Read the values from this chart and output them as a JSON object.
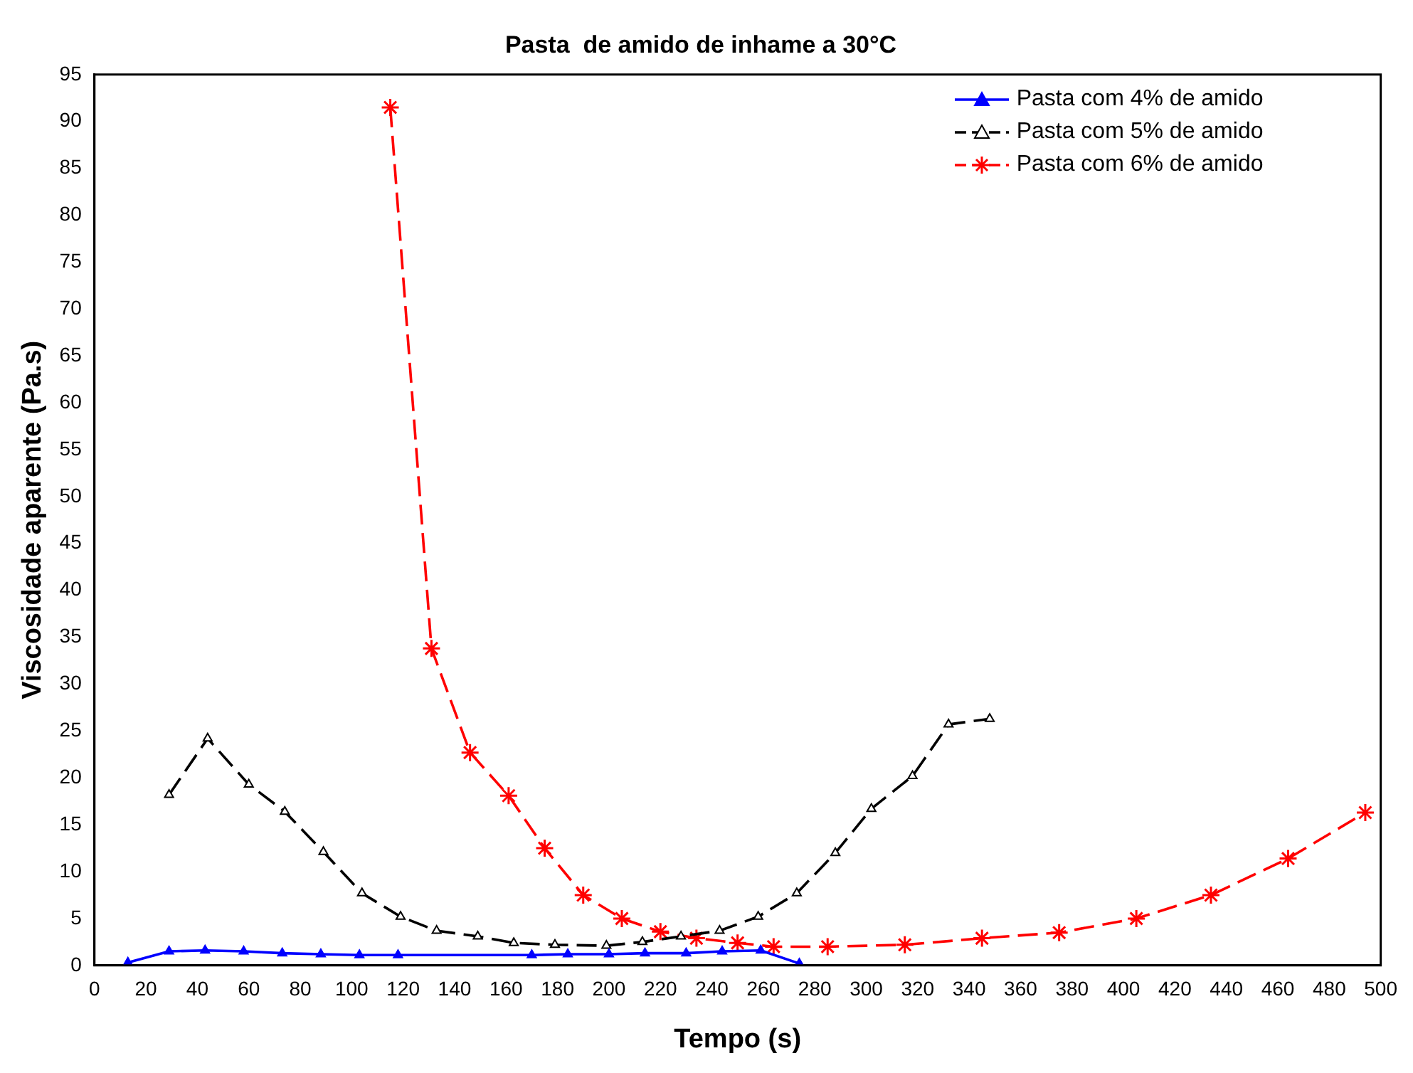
{
  "chart_data": {
    "type": "line",
    "title": "Pasta  de amido de inhame a 30°C",
    "xlabel": "Tempo (s)",
    "ylabel": "Viscosidade aparente (Pa.s)",
    "xlim": [
      0,
      500
    ],
    "xticks": [
      0,
      20,
      40,
      60,
      80,
      100,
      120,
      140,
      160,
      180,
      200,
      220,
      240,
      260,
      280,
      300,
      320,
      340,
      360,
      380,
      400,
      420,
      440,
      460,
      480,
      500
    ],
    "ylim": [
      0,
      95
    ],
    "yticks": [
      0,
      5,
      10,
      15,
      20,
      25,
      30,
      35,
      40,
      45,
      50,
      55,
      60,
      65,
      70,
      75,
      80,
      85,
      90,
      95
    ],
    "grid": false,
    "legend": "top right",
    "series": [
      {
        "name": "Pasta com 4% de amido",
        "color": "#0000ff",
        "marker": "triangle",
        "line_style": "solid",
        "x": [
          13,
          29,
          43,
          58,
          73,
          88,
          103,
          118,
          170,
          184,
          200,
          214,
          230,
          244,
          259,
          274
        ],
        "values": [
          0.3,
          1.5,
          1.6,
          1.5,
          1.3,
          1.2,
          1.1,
          1.1,
          1.1,
          1.2,
          1.2,
          1.3,
          1.3,
          1.5,
          1.6,
          0.2
        ]
      },
      {
        "name": "Pasta com 5% de amido",
        "color": "#000000",
        "marker": "triangle",
        "line_style": "dashed",
        "x": [
          29,
          44,
          60,
          74,
          89,
          104,
          119,
          133,
          149,
          163,
          179,
          199,
          213,
          228,
          243,
          258,
          273,
          288,
          302,
          318,
          332,
          348
        ],
        "values": [
          18.2,
          24.2,
          19.3,
          16.4,
          12.1,
          7.7,
          5.2,
          3.7,
          3.1,
          2.4,
          2.2,
          2.1,
          2.5,
          3.1,
          3.7,
          5.2,
          7.7,
          12,
          16.7,
          20.2,
          25.7,
          26.3
        ]
      },
      {
        "name": "Pasta com 6% de amido",
        "color": "#ff0000",
        "marker": "cross",
        "line_style": "dashed",
        "x": [
          115,
          131,
          146,
          161,
          175,
          190,
          205,
          220,
          234,
          250,
          264,
          285,
          315,
          345,
          375,
          405,
          434,
          464,
          494
        ],
        "values": [
          91.5,
          33.8,
          22.7,
          18.1,
          12.5,
          7.5,
          5.0,
          3.6,
          2.9,
          2.4,
          2.0,
          2.0,
          2.2,
          2.9,
          3.5,
          5.0,
          7.5,
          11.4,
          16.3
        ]
      }
    ]
  }
}
